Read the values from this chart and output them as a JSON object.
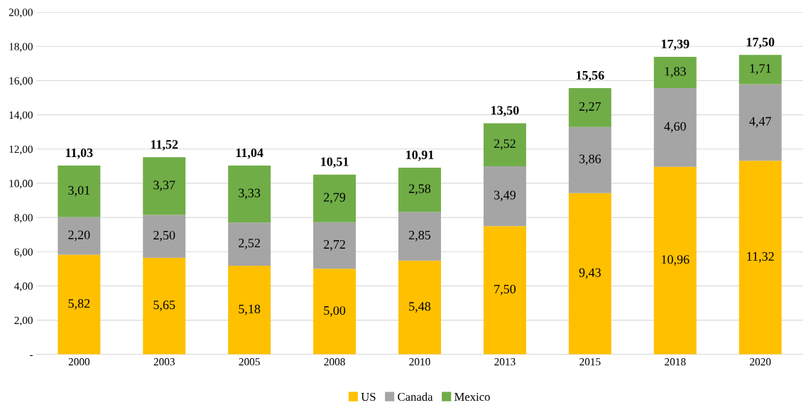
{
  "chart_data": {
    "type": "bar",
    "stacked": true,
    "categories": [
      "2000",
      "2003",
      "2005",
      "2008",
      "2010",
      "2013",
      "2015",
      "2018",
      "2020"
    ],
    "series": [
      {
        "name": "US",
        "color": "#ffc000",
        "values": [
          5.82,
          5.65,
          5.18,
          5.0,
          5.48,
          7.5,
          9.43,
          10.96,
          11.32
        ],
        "value_labels": [
          "5,82",
          "5,65",
          "5,18",
          "5,00",
          "5,48",
          "7,50",
          "9,43",
          "10,96",
          "11,32"
        ]
      },
      {
        "name": "Canada",
        "color": "#a5a5a5",
        "values": [
          2.2,
          2.5,
          2.52,
          2.72,
          2.85,
          3.49,
          3.86,
          4.6,
          4.47
        ],
        "value_labels": [
          "2,20",
          "2,50",
          "2,52",
          "2,72",
          "2,85",
          "3,49",
          "3,86",
          "4,60",
          "4,47"
        ]
      },
      {
        "name": "Mexico",
        "color": "#70ad47",
        "values": [
          3.01,
          3.37,
          3.33,
          2.79,
          2.58,
          2.52,
          2.27,
          1.83,
          1.71
        ],
        "value_labels": [
          "3,01",
          "3,37",
          "3,33",
          "2,79",
          "2,58",
          "2,52",
          "2,27",
          "1,83",
          "1,71"
        ]
      }
    ],
    "totals": [
      "11,03",
      "11,52",
      "11,04",
      "10,51",
      "10,91",
      "13,50",
      "15,56",
      "17,39",
      "17,50"
    ],
    "ylim": [
      0,
      20
    ],
    "yticks": [
      {
        "value": 0,
        "label": "-"
      },
      {
        "value": 2,
        "label": "2,00"
      },
      {
        "value": 4,
        "label": "4,00"
      },
      {
        "value": 6,
        "label": "6,00"
      },
      {
        "value": 8,
        "label": "8,00"
      },
      {
        "value": 10,
        "label": "10,00"
      },
      {
        "value": 12,
        "label": "12,00"
      },
      {
        "value": 14,
        "label": "14,00"
      },
      {
        "value": 16,
        "label": "16,00"
      },
      {
        "value": 18,
        "label": "18,00"
      },
      {
        "value": 20,
        "label": "20,00"
      }
    ],
    "grid": "y",
    "legend": "bottom"
  }
}
